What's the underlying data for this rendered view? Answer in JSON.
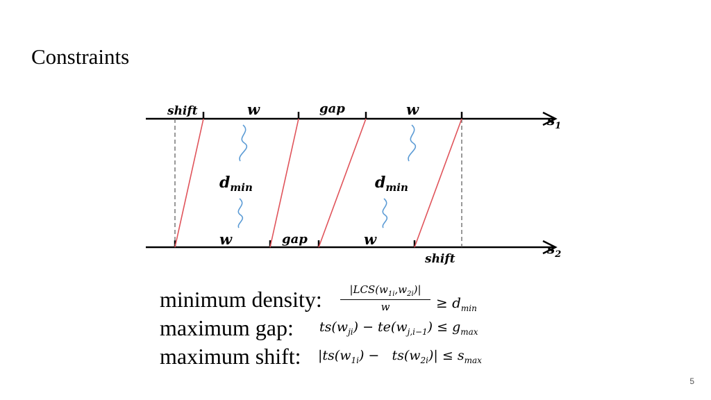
{
  "slide": {
    "title": "Constraints",
    "page_number": "5"
  },
  "diagram": {
    "stream1_label": "s",
    "stream1_index": "1",
    "stream2_label": "s",
    "stream2_index": "2",
    "top_labels": {
      "shift": "shift",
      "w1": "w",
      "gap": "gap",
      "w2": "w"
    },
    "bottom_labels": {
      "w1": "w",
      "gap": "gap",
      "w2": "w",
      "shift": "shift"
    },
    "dmin_main": "d",
    "dmin_sub": "min",
    "colors": {
      "match_line": "#e0535a",
      "brace": "#5b9bd5",
      "axis": "#000000",
      "guide": "#555555"
    }
  },
  "constraints": {
    "density_label": "minimum density:",
    "gap_label": "maximum gap:",
    "shift_label": "maximum shift:",
    "density_formula": {
      "numerator": "|LCS(w",
      "num_sub1": "1i",
      "num_mid": ",w",
      "num_sub2": "2i",
      "num_end": ")|",
      "denominator": "w",
      "rhs": "≥ d",
      "rhs_sub": "min"
    },
    "gap_formula": {
      "a": "ts(w",
      "a_sub": "ji",
      "b": ") − te(w",
      "b_sub": "j,i−1",
      "c": ") ≤ g",
      "c_sub": "max"
    },
    "shift_formula": {
      "a": "|ts(w",
      "a_sub": "1i",
      "b": ") −   ts(w",
      "b_sub": "2i",
      "c": ")| ≤ s",
      "c_sub": "max"
    }
  }
}
